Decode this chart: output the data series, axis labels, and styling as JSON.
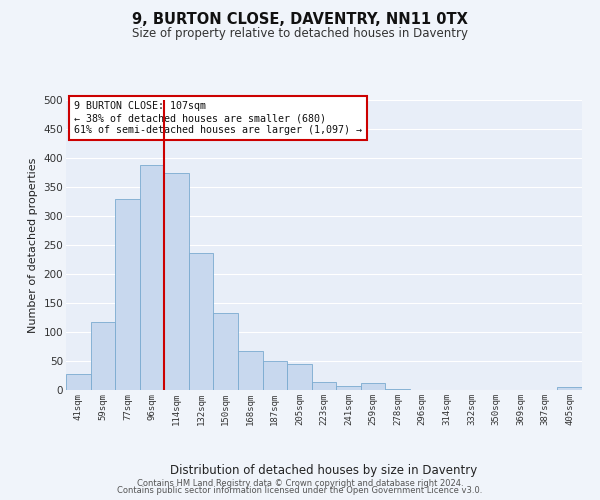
{
  "title": "9, BURTON CLOSE, DAVENTRY, NN11 0TX",
  "subtitle": "Size of property relative to detached houses in Daventry",
  "xlabel": "Distribution of detached houses by size in Daventry",
  "ylabel": "Number of detached properties",
  "bar_color": "#c8d8ee",
  "bar_edge_color": "#7aaad0",
  "background_color": "#f0f4fa",
  "plot_bg_color": "#e8eef8",
  "grid_color": "#ffffff",
  "categories": [
    "41sqm",
    "59sqm",
    "77sqm",
    "96sqm",
    "114sqm",
    "132sqm",
    "150sqm",
    "168sqm",
    "187sqm",
    "205sqm",
    "223sqm",
    "241sqm",
    "259sqm",
    "278sqm",
    "296sqm",
    "314sqm",
    "332sqm",
    "350sqm",
    "369sqm",
    "387sqm",
    "405sqm"
  ],
  "values": [
    27,
    117,
    330,
    388,
    375,
    236,
    133,
    68,
    50,
    45,
    14,
    7,
    12,
    1,
    0,
    0,
    0,
    0,
    0,
    0,
    6
  ],
  "ylim": [
    0,
    500
  ],
  "yticks": [
    0,
    50,
    100,
    150,
    200,
    250,
    300,
    350,
    400,
    450,
    500
  ],
  "property_line_idx": 3.5,
  "property_line_color": "#cc0000",
  "annotation_title": "9 BURTON CLOSE: 107sqm",
  "annotation_line1": "← 38% of detached houses are smaller (680)",
  "annotation_line2": "61% of semi-detached houses are larger (1,097) →",
  "annotation_box_color": "#ffffff",
  "annotation_box_edge_color": "#cc0000",
  "footer_line1": "Contains HM Land Registry data © Crown copyright and database right 2024.",
  "footer_line2": "Contains public sector information licensed under the Open Government Licence v3.0."
}
